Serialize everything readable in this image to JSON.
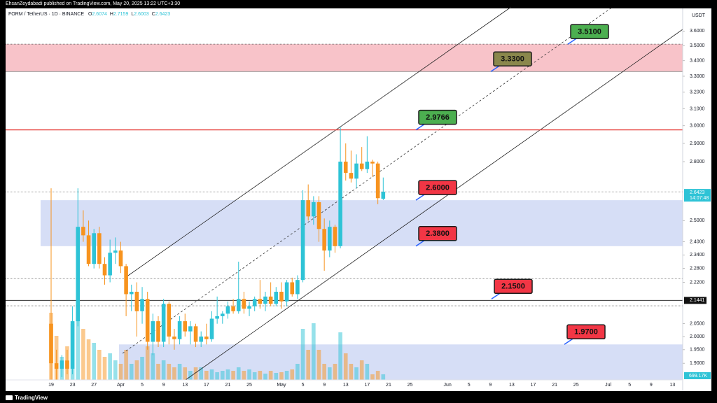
{
  "header": {
    "author_line": "EhsanZeydabadi published on TradingView.com, May 20, 2025 13:22 UTC+3:30",
    "brand": "TradingView"
  },
  "chart_data": {
    "type": "candlestick",
    "title": "FORM / TetherUS · 1D · BINANCE",
    "ohlc_header": [
      {
        "name": "O",
        "value": 2.6074
      },
      {
        "name": "H",
        "value": 2.7159
      },
      {
        "name": "L",
        "value": 2.6003
      },
      {
        "name": "C",
        "value": 2.6423
      }
    ],
    "y_unit": "USDT",
    "log_scale": true,
    "grid": false,
    "up_color": "#2ec3d6",
    "down_color": "#f7931e",
    "ylim": [
      1.84,
      3.76
    ],
    "yticks": [
      {
        "value": 3.6,
        "label": "3.6000"
      },
      {
        "value": 3.5,
        "label": "3.5000"
      },
      {
        "value": 3.4,
        "label": "3.4000"
      },
      {
        "value": 3.3,
        "label": "3.3000"
      },
      {
        "value": 3.2,
        "label": "3.2000"
      },
      {
        "value": 3.1,
        "label": "3.1000"
      },
      {
        "value": 3.0,
        "label": "3.0000"
      },
      {
        "value": 2.9,
        "label": "2.9000"
      },
      {
        "value": 2.8,
        "label": "2.8000"
      },
      {
        "value": 2.5,
        "label": "2.5000"
      },
      {
        "value": 2.4,
        "label": "2.4000"
      },
      {
        "value": 2.34,
        "label": "2.3400"
      },
      {
        "value": 2.28,
        "label": "2.2800"
      },
      {
        "value": 2.22,
        "label": "2.2200"
      },
      {
        "value": 2.05,
        "label": "2.0500"
      },
      {
        "value": 2.0,
        "label": "2.0000"
      },
      {
        "value": 1.95,
        "label": "1.9500"
      },
      {
        "value": 1.9,
        "label": "1.9000"
      }
    ],
    "categories": [
      "19",
      null,
      null,
      null,
      "23",
      null,
      null,
      null,
      "27",
      null,
      null,
      null,
      null,
      "Apr",
      null,
      null,
      null,
      "5",
      null,
      null,
      null,
      "9",
      null,
      null,
      null,
      "13",
      null,
      null,
      null,
      "17",
      null,
      null,
      null,
      "21",
      null,
      null,
      null,
      "25",
      null,
      null,
      null,
      null,
      null,
      "May",
      null,
      null,
      null,
      "5",
      null,
      null,
      null,
      "9",
      null,
      null,
      null,
      "13",
      null,
      null,
      null,
      "17",
      null,
      null,
      null,
      "21",
      null,
      null,
      null,
      "25",
      null,
      null,
      null,
      null,
      null,
      null,
      "Jun",
      null,
      null,
      null,
      "5",
      null,
      null,
      null,
      "9",
      null,
      null,
      null,
      "13",
      null,
      null,
      null,
      "17",
      null,
      null,
      null,
      "21",
      null,
      null,
      null,
      "25",
      null,
      null,
      null,
      null,
      null,
      "Jul",
      null,
      null,
      null,
      "5",
      null,
      null,
      null,
      "9",
      null,
      null,
      null,
      "13",
      null
    ],
    "open": [
      2.05,
      1.9,
      1.88,
      1.91,
      1.88,
      2.06,
      2.47,
      2.43,
      2.3,
      2.44,
      2.3,
      2.25,
      2.35,
      2.36,
      2.29,
      2.17,
      2.18,
      2.1,
      2.15,
      1.98,
      2.06,
      1.98,
      2.13,
      2.0,
      1.99,
      2.06,
      2.02,
      2.04,
      1.98,
      2.0,
      1.99,
      2.07,
      2.08,
      2.09,
      2.12,
      2.1,
      2.15,
      2.11,
      2.12,
      2.15,
      2.13,
      2.16,
      2.13,
      2.18,
      2.14,
      2.22,
      2.17,
      2.23,
      2.6,
      2.52,
      2.59,
      2.46,
      2.36,
      2.47,
      2.38,
      2.8,
      2.74,
      2.71,
      2.79,
      2.76,
      2.8,
      2.79,
      2.6074,
      null,
      null,
      null,
      null,
      null,
      null,
      null,
      null,
      null,
      null,
      null,
      null,
      null,
      null,
      null,
      null,
      null,
      null,
      null,
      null,
      null,
      null,
      null,
      null,
      null,
      null,
      null,
      null,
      null,
      null,
      null,
      null,
      null,
      null,
      null,
      null,
      null,
      null,
      null,
      null,
      null,
      null,
      null,
      null,
      null,
      null,
      null,
      null,
      null,
      null,
      null,
      null,
      null,
      null,
      null
    ],
    "high": [
      2.66,
      1.95,
      1.93,
      1.95,
      2.12,
      2.66,
      2.55,
      2.5,
      2.46,
      2.47,
      2.33,
      2.41,
      2.42,
      2.4,
      2.3,
      2.21,
      2.22,
      2.2,
      2.18,
      2.09,
      2.08,
      2.15,
      2.14,
      2.03,
      2.08,
      2.09,
      2.06,
      2.05,
      2.02,
      2.05,
      2.1,
      2.16,
      2.1,
      2.14,
      2.15,
      2.31,
      2.18,
      2.14,
      2.16,
      2.23,
      2.18,
      2.22,
      2.2,
      2.22,
      2.23,
      2.24,
      2.25,
      2.65,
      2.68,
      2.62,
      2.62,
      2.51,
      2.5,
      2.48,
      2.99,
      2.9,
      2.86,
      2.84,
      2.88,
      2.94,
      2.81,
      2.8,
      2.7159,
      null,
      null,
      null,
      null,
      null,
      null,
      null,
      null,
      null,
      null,
      null,
      null,
      null,
      null,
      null,
      null,
      null,
      null,
      null,
      null,
      null,
      null,
      null,
      null,
      null,
      null,
      null,
      null,
      null,
      null,
      null,
      null,
      null,
      null,
      null,
      null,
      null,
      null,
      null,
      null,
      null,
      null,
      null,
      null,
      null,
      null,
      null,
      null,
      null,
      null,
      null,
      null,
      null,
      null,
      null
    ],
    "low": [
      1.84,
      1.84,
      1.85,
      1.86,
      1.86,
      2.04,
      2.4,
      2.29,
      2.28,
      2.28,
      2.21,
      2.22,
      2.3,
      2.26,
      2.08,
      2.1,
      2.0,
      2.05,
      1.95,
      1.93,
      1.96,
      1.96,
      1.97,
      1.95,
      1.97,
      2.0,
      1.97,
      1.96,
      1.96,
      1.97,
      1.98,
      2.05,
      2.05,
      2.07,
      2.09,
      2.09,
      2.09,
      2.08,
      2.1,
      2.11,
      2.1,
      2.12,
      2.12,
      2.11,
      2.12,
      2.16,
      2.15,
      2.22,
      2.5,
      2.48,
      2.4,
      2.27,
      2.33,
      2.35,
      2.37,
      2.7,
      2.69,
      2.66,
      2.75,
      2.74,
      2.72,
      2.58,
      2.6003,
      null,
      null,
      null,
      null,
      null,
      null,
      null,
      null,
      null,
      null,
      null,
      null,
      null,
      null,
      null,
      null,
      null,
      null,
      null,
      null,
      null,
      null,
      null,
      null,
      null,
      null,
      null,
      null,
      null,
      null,
      null,
      null,
      null,
      null,
      null,
      null,
      null,
      null,
      null,
      null,
      null,
      null,
      null,
      null,
      null,
      null,
      null,
      null,
      null,
      null,
      null,
      null,
      null,
      null,
      null
    ],
    "close": [
      1.9,
      1.88,
      1.91,
      1.88,
      2.06,
      2.47,
      2.43,
      2.3,
      2.44,
      2.3,
      2.25,
      2.35,
      2.36,
      2.29,
      2.17,
      2.18,
      2.1,
      2.15,
      1.98,
      2.06,
      1.98,
      2.13,
      2.0,
      1.99,
      2.06,
      2.02,
      2.04,
      1.98,
      2.0,
      1.99,
      2.07,
      2.08,
      2.09,
      2.12,
      2.1,
      2.15,
      2.11,
      2.12,
      2.15,
      2.13,
      2.16,
      2.13,
      2.18,
      2.14,
      2.22,
      2.17,
      2.23,
      2.6,
      2.52,
      2.59,
      2.46,
      2.36,
      2.47,
      2.38,
      2.8,
      2.74,
      2.71,
      2.79,
      2.76,
      2.8,
      2.79,
      2.61,
      2.6423,
      null,
      null,
      null,
      null,
      null,
      null,
      null,
      null,
      null,
      null,
      null,
      null,
      null,
      null,
      null,
      null,
      null,
      null,
      null,
      null,
      null,
      null,
      null,
      null,
      null,
      null,
      null,
      null,
      null,
      null,
      null,
      null,
      null,
      null,
      null,
      null,
      null,
      null,
      null,
      null,
      null,
      null,
      null,
      null,
      null,
      null,
      null,
      null,
      null,
      null,
      null,
      null,
      null,
      null,
      null
    ],
    "volume": [
      8352000,
      5481000,
      2871000,
      4176000,
      6960000,
      8526000,
      6351000,
      5046000,
      4611000,
      3741000,
      2871000,
      3306000,
      2436000,
      2001000,
      3741000,
      2001000,
      2436000,
      2871000,
      4176000,
      3306000,
      2001000,
      2436000,
      2001000,
      1566000,
      2001000,
      1566000,
      1131000,
      1566000,
      1566000,
      1131000,
      1305000,
      957000,
      1131000,
      1305000,
      1131000,
      1566000,
      1131000,
      1305000,
      957000,
      1131000,
      783000,
      1131000,
      870000,
      957000,
      1131000,
      1305000,
      2001000,
      6351000,
      3741000,
      7047000,
      3741000,
      2001000,
      1566000,
      2001000,
      5916000,
      3306000,
      2001000,
      1566000,
      2436000,
      2001000,
      696000,
      1131000,
      699170,
      null,
      null,
      null,
      null,
      null,
      null,
      null,
      null,
      null,
      null,
      null,
      null,
      null,
      null,
      null,
      null,
      null,
      null,
      null,
      null,
      null,
      null,
      null,
      null,
      null,
      null,
      null,
      null,
      null,
      null,
      null,
      null,
      null,
      null,
      null,
      null,
      null,
      null,
      null,
      null,
      null,
      null,
      null,
      null,
      null,
      null,
      null,
      null,
      null,
      null,
      null,
      null,
      null,
      null,
      null
    ],
    "volume_label": {
      "value": 699170,
      "label": "699.17K"
    },
    "countdown": "14:07:48",
    "marked_level": 2.1441,
    "resistance_level": {
      "value": 2.9766,
      "color": "#e53935"
    },
    "dotted_levels": [
      2.236,
      2.122
    ],
    "zones": [
      {
        "top": 3.51,
        "bottom": 3.33,
        "color": "#f8c3c9"
      },
      {
        "top": 2.6,
        "bottom": 2.38,
        "color": "#d6def6"
      },
      {
        "top": 1.97,
        "color": "#d6def6"
      }
    ],
    "annotations": [
      {
        "label": "3.5100",
        "value": 3.51,
        "color": "#4caf50"
      },
      {
        "label": "3.3300",
        "value": 3.33,
        "color": "#8a874c"
      },
      {
        "label": "2.9766",
        "value": 2.9766,
        "color": "#4caf50"
      },
      {
        "label": "2.6000",
        "value": 2.6,
        "color": "#f23645"
      },
      {
        "label": "2.3800",
        "value": 2.38,
        "color": "#f23645"
      },
      {
        "label": "2.1500",
        "value": 2.15,
        "color": "#f23645"
      },
      {
        "label": "1.9700",
        "value": 1.97,
        "color": "#f23645"
      }
    ]
  }
}
